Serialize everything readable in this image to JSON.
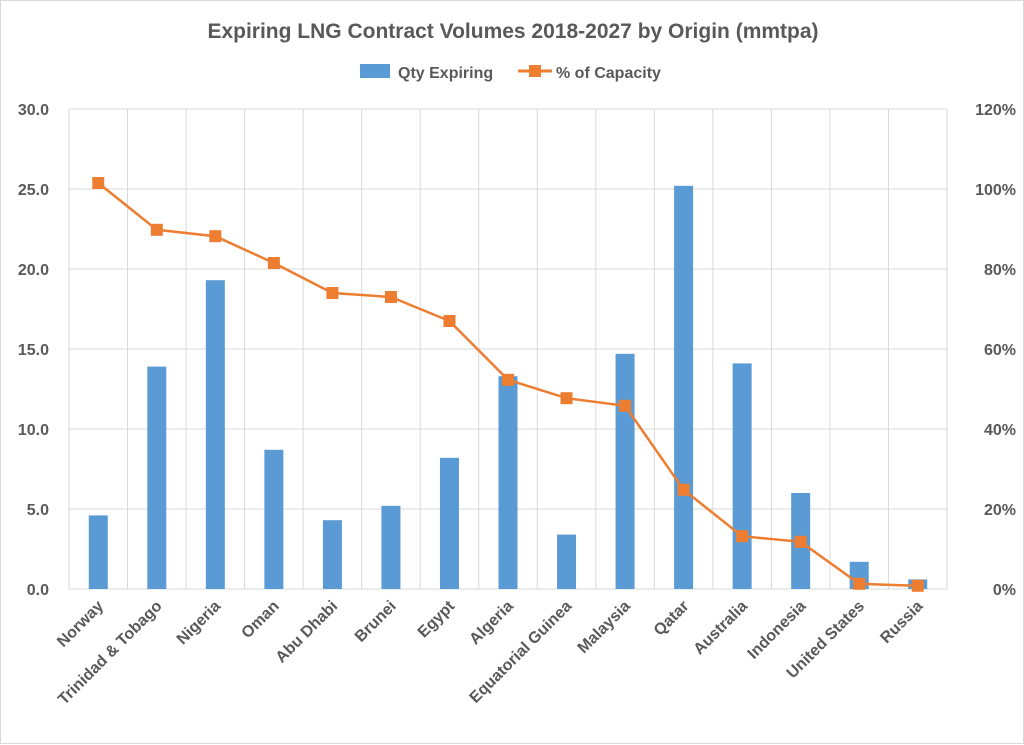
{
  "chart_data": {
    "type": "bar",
    "title": "Expiring LNG Contract Volumes 2018-2027 by Origin (mmtpa)",
    "categories": [
      "Norway",
      "Trinidad & Tobago",
      "Nigeria",
      "Oman",
      "Abu Dhabi",
      "Brunei",
      "Egypt",
      "Algeria",
      "Equatorial Guinea",
      "Malaysia",
      "Qatar",
      "Australia",
      "Indonesia",
      "United States",
      "Russia"
    ],
    "series": [
      {
        "name": "Qty Expiring",
        "type": "bar",
        "axis": "left",
        "color": "#5b9bd5",
        "values": [
          4.6,
          13.9,
          19.3,
          8.7,
          4.3,
          5.2,
          8.2,
          13.3,
          3.4,
          14.7,
          25.2,
          14.1,
          6.0,
          1.7,
          0.6
        ]
      },
      {
        "name": "% of Capacity",
        "type": "line",
        "axis": "right",
        "color": "#ed7d31",
        "values": [
          101.5,
          89.8,
          88.2,
          81.5,
          74.0,
          73.0,
          67.0,
          52.3,
          47.7,
          45.8,
          24.8,
          13.2,
          11.8,
          1.3,
          0.8
        ]
      }
    ],
    "y_left": {
      "min": 0,
      "max": 30,
      "ticks": [
        "0.0",
        "5.0",
        "10.0",
        "15.0",
        "20.0",
        "25.0",
        "30.0"
      ]
    },
    "y_right": {
      "min": 0,
      "max": 120,
      "ticks": [
        "0%",
        "20%",
        "40%",
        "60%",
        "80%",
        "100%",
        "120%"
      ]
    },
    "grid": true,
    "legend_position": "top-center"
  }
}
